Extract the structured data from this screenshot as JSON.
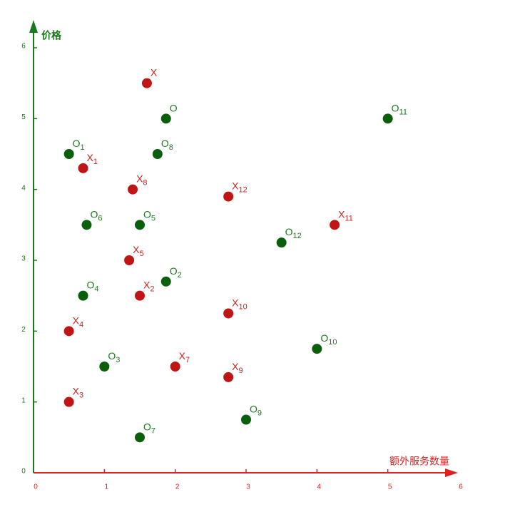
{
  "chart_data": {
    "type": "scatter",
    "xlabel": "额外服务数量",
    "ylabel": "价格",
    "xlim": [
      0,
      6
    ],
    "ylim": [
      0,
      6
    ],
    "xticks": [
      0,
      1,
      2,
      3,
      4,
      5,
      6
    ],
    "yticks": [
      0,
      1,
      2,
      3,
      4,
      5,
      6
    ],
    "x_axis_color": "#e02020",
    "y_axis_color": "#1a7a1a",
    "series": [
      {
        "name": "O",
        "color": "#0b5e0b",
        "label_color": "#1e7a1e",
        "x": [
          1.87,
          0.5,
          1.87,
          1,
          0.7,
          1.5,
          0.75,
          1.5,
          1.75,
          3,
          4,
          5,
          3.5
        ],
        "values": [
          5,
          4.5,
          2.7,
          1.5,
          2.5,
          3.5,
          3.5,
          0.5,
          4.5,
          0.75,
          1.75,
          5,
          3.25
        ],
        "subscripts": [
          null,
          "1",
          "2",
          "3",
          "4",
          "5",
          "6",
          "7",
          "8",
          "9",
          "10",
          "11",
          "12"
        ]
      },
      {
        "name": "X",
        "color": "#c01515",
        "label_color": "#cc2222",
        "x": [
          1.6,
          0.7,
          1.5,
          0.5,
          0.5,
          1.35,
          2,
          1.4,
          2.75,
          2.75,
          4.25,
          2.75
        ],
        "values": [
          5.5,
          4.3,
          2.5,
          1,
          2,
          3,
          1.5,
          4,
          1.35,
          2.25,
          3.5,
          3.9
        ],
        "subscripts": [
          null,
          "1",
          "2",
          "3",
          "4",
          "5",
          "7",
          "8",
          "9",
          "10",
          "11",
          "12"
        ]
      }
    ]
  }
}
